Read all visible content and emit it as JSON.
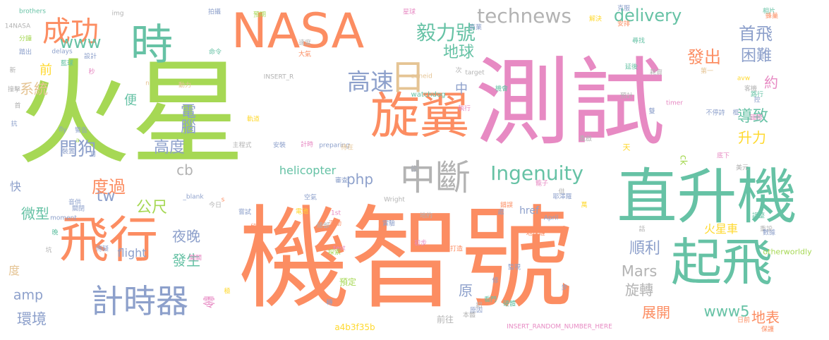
{
  "palette": {
    "green": "#a6d854",
    "orange": "#fc8d62",
    "pink": "#e78ac3",
    "teal": "#66c2a5",
    "slate": "#8da0cb",
    "gold": "#e5c494",
    "yellow": "#ffd92f",
    "gray": "#b3b3b3"
  },
  "words": [
    {
      "text": "機智號",
      "color": "orange"
    },
    {
      "text": "火星",
      "color": "green"
    },
    {
      "text": "測試",
      "color": "pink"
    },
    {
      "text": "NASA",
      "color": "orange"
    },
    {
      "text": "直升機",
      "color": "teal"
    },
    {
      "text": "旋翼",
      "color": "orange"
    },
    {
      "text": "起飛",
      "color": "teal"
    },
    {
      "text": "飛行",
      "color": "orange"
    },
    {
      "text": "時",
      "color": "teal"
    },
    {
      "text": "計時器",
      "color": "slate"
    },
    {
      "text": "中斷",
      "color": "gray"
    },
    {
      "text": "日",
      "color": "gold"
    },
    {
      "text": "technews",
      "color": "gray"
    },
    {
      "text": "Ingenuity",
      "color": "teal"
    },
    {
      "text": "成功",
      "color": "orange"
    },
    {
      "text": "毅力號",
      "color": "teal"
    },
    {
      "text": "高速",
      "color": "slate"
    },
    {
      "text": "delivery",
      "color": "teal"
    },
    {
      "text": "首飛",
      "color": "slate"
    },
    {
      "text": "www",
      "color": "teal"
    },
    {
      "text": "地球",
      "color": "teal"
    },
    {
      "text": "發出",
      "color": "orange"
    },
    {
      "text": "困難",
      "color": "slate"
    },
    {
      "text": "約",
      "color": "pink"
    },
    {
      "text": "門狗",
      "color": "slate"
    },
    {
      "text": "電腦",
      "color": "slate"
    },
    {
      "text": "系統",
      "color": "gold"
    },
    {
      "text": "前",
      "color": "yellow"
    },
    {
      "text": "便",
      "color": "teal"
    },
    {
      "text": "中",
      "color": "slate"
    },
    {
      "text": "導致",
      "color": "teal"
    },
    {
      "text": "升力",
      "color": "yellow"
    },
    {
      "text": "高度",
      "color": "slate"
    },
    {
      "text": "cb",
      "color": "gray"
    },
    {
      "text": "php",
      "color": "slate"
    },
    {
      "text": "tw",
      "color": "slate"
    },
    {
      "text": "度過",
      "color": "orange"
    },
    {
      "text": "公尺",
      "color": "green"
    },
    {
      "text": "快",
      "color": "slate"
    },
    {
      "text": "微型",
      "color": "teal"
    },
    {
      "text": "夜晚",
      "color": "slate"
    },
    {
      "text": "發生",
      "color": "teal"
    },
    {
      "text": "順利",
      "color": "slate"
    },
    {
      "text": "Mars",
      "color": "gray"
    },
    {
      "text": "旋轉",
      "color": "gray"
    },
    {
      "text": "原",
      "color": "slate"
    },
    {
      "text": "www5",
      "color": "teal"
    },
    {
      "text": "地表",
      "color": "orange"
    },
    {
      "text": "展開",
      "color": "orange"
    },
    {
      "text": "度",
      "color": "gold"
    },
    {
      "text": "amp",
      "color": "slate"
    },
    {
      "text": "環境",
      "color": "slate"
    },
    {
      "text": "零",
      "color": "pink"
    },
    {
      "text": "helicopter",
      "color": "teal"
    },
    {
      "text": "flight",
      "color": "slate"
    },
    {
      "text": "火星車",
      "color": "yellow"
    },
    {
      "text": "天",
      "color": "yellow"
    },
    {
      "text": "預定",
      "color": "green"
    },
    {
      "text": "前往",
      "color": "gray"
    },
    {
      "text": "a4b3f35b",
      "color": "yellow"
    },
    {
      "text": "INSERT_RANDOM_NUMBER_HERE",
      "color": "pink"
    },
    {
      "text": "href",
      "color": "slate"
    },
    {
      "text": "ck",
      "color": "green"
    },
    {
      "text": "otherworldly",
      "color": "green"
    },
    {
      "text": "preparing",
      "color": "slate"
    },
    {
      "text": "watchdog",
      "color": "teal"
    },
    {
      "text": "zoneid",
      "color": "gold"
    },
    {
      "text": "target",
      "color": "gray"
    },
    {
      "text": "INSERT_R",
      "color": "gray"
    },
    {
      "text": "Wright",
      "color": "gray"
    },
    {
      "text": "April",
      "color": "slate"
    },
    {
      "text": "1st",
      "color": "pink"
    },
    {
      "text": "moment",
      "color": "slate"
    },
    {
      "text": "delays",
      "color": "slate"
    },
    {
      "text": "brothers",
      "color": "teal"
    },
    {
      "text": "14NASA",
      "color": "gray"
    },
    {
      "text": "img",
      "color": "gray"
    },
    {
      "text": "avw",
      "color": "yellow"
    },
    {
      "text": "timer",
      "color": "pink"
    },
    {
      "text": "_blank",
      "color": "slate"
    },
    {
      "text": "test",
      "color": "pink"
    },
    {
      "text": "src",
      "color": "green"
    },
    {
      "text": "fly",
      "color": "slate"
    },
    {
      "text": "a",
      "color": "green"
    },
    {
      "text": "n",
      "color": "gold"
    },
    {
      "text": "s",
      "color": "orange"
    },
    {
      "text": "主程式",
      "color": "gray"
    },
    {
      "text": "安裝",
      "color": "slate"
    },
    {
      "text": "計時",
      "color": "pink"
    },
    {
      "text": "設計",
      "color": "slate"
    },
    {
      "text": "警告",
      "color": "slate"
    },
    {
      "text": "藍球",
      "color": "teal"
    },
    {
      "text": "秒",
      "color": "pink"
    },
    {
      "text": "裝置",
      "color": "slate"
    },
    {
      "text": "撞擊",
      "color": "gray"
    },
    {
      "text": "抗",
      "color": "slate"
    },
    {
      "text": "速度",
      "color": "gray"
    },
    {
      "text": "執行",
      "color": "pink"
    },
    {
      "text": "機會",
      "color": "teal"
    },
    {
      "text": "延後",
      "color": "teal"
    },
    {
      "text": "預計",
      "color": "gray"
    },
    {
      "text": "重啟",
      "color": "gray"
    },
    {
      "text": "底下",
      "color": "pink"
    },
    {
      "text": "美元",
      "color": "gray"
    },
    {
      "text": "重設",
      "color": "gray"
    },
    {
      "text": "數據",
      "color": "slate"
    },
    {
      "text": "調整",
      "color": "teal"
    },
    {
      "text": "錯誤",
      "color": "orange"
    },
    {
      "text": "萬",
      "color": "yellow"
    },
    {
      "text": "耶澤羅",
      "color": "slate"
    },
    {
      "text": "籠子",
      "color": "pink"
    },
    {
      "text": "嘗試",
      "color": "slate"
    },
    {
      "text": "今日",
      "color": "gray"
    },
    {
      "text": "運動",
      "color": "orange"
    },
    {
      "text": "實驗",
      "color": "slate"
    },
    {
      "text": "初步",
      "color": "pink"
    },
    {
      "text": "打造",
      "color": "orange"
    },
    {
      "text": "監視",
      "color": "slate"
    },
    {
      "text": "看門",
      "color": "teal"
    },
    {
      "text": "本體",
      "color": "gray"
    },
    {
      "text": "日前",
      "color": "orange"
    },
    {
      "text": "保護",
      "color": "orange"
    },
    {
      "text": "審查",
      "color": "slate"
    },
    {
      "text": "總部",
      "color": "gray"
    },
    {
      "text": "相片",
      "color": "teal"
    },
    {
      "text": "蜂巢",
      "color": "orange"
    },
    {
      "text": "解決",
      "color": "yellow"
    },
    {
      "text": "安排",
      "color": "orange"
    },
    {
      "text": "克服",
      "color": "slate"
    },
    {
      "text": "尋找",
      "color": "teal"
    },
    {
      "text": "第一",
      "color": "gold"
    },
    {
      "text": "不停詩",
      "color": "slate"
    },
    {
      "text": "客機",
      "color": "gray"
    },
    {
      "text": "大氣",
      "color": "orange"
    },
    {
      "text": "命令",
      "color": "teal"
    },
    {
      "text": "動力",
      "color": "gold"
    },
    {
      "text": "商業",
      "color": "slate"
    },
    {
      "text": "星球",
      "color": "pink"
    },
    {
      "text": "預期",
      "color": "green"
    },
    {
      "text": "拍攝",
      "color": "slate"
    },
    {
      "text": "開關",
      "color": "pink"
    },
    {
      "text": "段階",
      "color": "orange"
    },
    {
      "text": "探索",
      "color": "green"
    },
    {
      "text": "地約",
      "color": "gray"
    },
    {
      "text": "傳疑",
      "color": "slate"
    },
    {
      "text": "晚",
      "color": "teal"
    },
    {
      "text": "音供",
      "color": "slate"
    },
    {
      "text": "關閉",
      "color": "slate"
    },
    {
      "text": "硬體",
      "color": "teal"
    },
    {
      "text": "原因",
      "color": "slate"
    },
    {
      "text": "地球鏈",
      "color": "orange"
    },
    {
      "text": "軌道",
      "color": "yellow"
    },
    {
      "text": "待在",
      "color": "gold"
    },
    {
      "text": "空氣",
      "color": "slate"
    },
    {
      "text": "電池",
      "color": "yellow"
    },
    {
      "text": "耗資",
      "color": "gray"
    },
    {
      "text": "國際",
      "color": "pink"
    },
    {
      "text": "路行",
      "color": "teal"
    },
    {
      "text": "踏出",
      "color": "slate"
    },
    {
      "text": "分鐘",
      "color": "green"
    },
    {
      "text": "新",
      "color": "gray"
    },
    {
      "text": "首",
      "color": "gray"
    },
    {
      "text": "月",
      "color": "slate"
    },
    {
      "text": "雙",
      "color": "slate"
    },
    {
      "text": "框",
      "color": "slate"
    },
    {
      "text": "控",
      "color": "slate"
    },
    {
      "text": "供",
      "color": "gray"
    },
    {
      "text": "話",
      "color": "gray"
    },
    {
      "text": "步",
      "color": "slate"
    },
    {
      "text": "次",
      "color": "gray"
    },
    {
      "text": "處",
      "color": "slate"
    },
    {
      "text": "坑",
      "color": "gray"
    },
    {
      "text": "極",
      "color": "yellow"
    },
    {
      "text": "轉",
      "color": "slate"
    },
    {
      "text": "修",
      "color": "slate"
    },
    {
      "text": "鋁",
      "color": "gray"
    },
    {
      "text": "理",
      "color": "gray"
    },
    {
      "text": "命",
      "color": "gray"
    },
    {
      "text": "枚",
      "color": "slate"
    },
    {
      "text": "寶",
      "color": "gray"
    },
    {
      "text": "機",
      "color": "gray"
    }
  ]
}
